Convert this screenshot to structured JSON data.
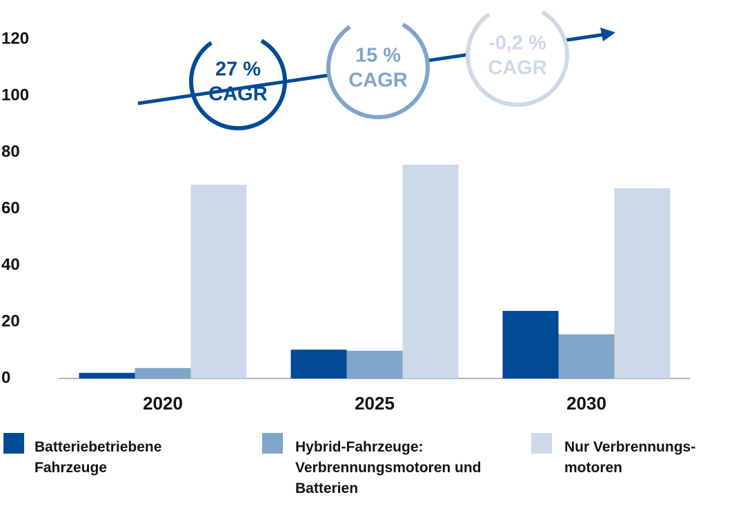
{
  "chart_data": {
    "type": "bar",
    "categories": [
      "2020",
      "2025",
      "2030"
    ],
    "series": [
      {
        "name": "Batteriebetriebene Fahrzeuge",
        "color": "#004a96",
        "values": [
          2,
          10.2,
          23.9
        ]
      },
      {
        "name": "Hybrid-Fahrzeuge: Verbrennungsmotoren und Batterien",
        "color": "#80a5ca",
        "values": [
          3.7,
          9.8,
          15.6
        ]
      },
      {
        "name": "Nur Verbrennungs-motoren",
        "color": "#cbd9e8",
        "values": [
          68.5,
          75.6,
          67.3
        ]
      }
    ],
    "ylim": [
      0,
      120
    ],
    "yticks": [
      0,
      20,
      40,
      60,
      80,
      100,
      120
    ],
    "annotations": [
      {
        "lines": [
          "27 %",
          "CAGR"
        ],
        "color": "#004a96"
      },
      {
        "lines": [
          "15 %",
          "CAGR"
        ],
        "color": "#80a5ca"
      },
      {
        "lines": [
          "-0,2 %",
          "CAGR"
        ],
        "color": "#cbd9e8"
      }
    ]
  }
}
